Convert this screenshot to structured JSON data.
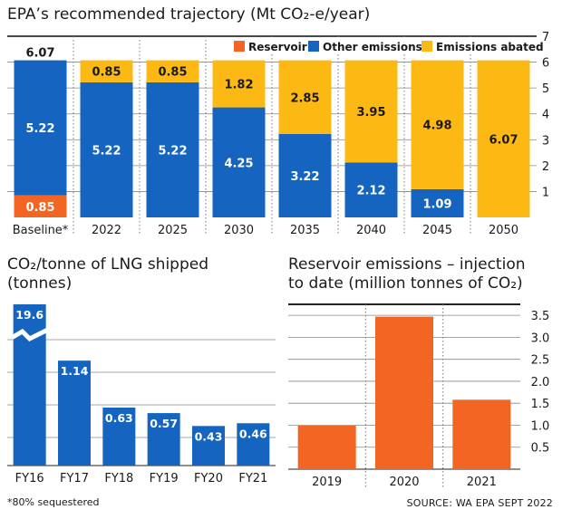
{
  "colors": {
    "reservoir": "#f26522",
    "other": "#1565c0",
    "abated": "#fdb913",
    "grid": "#666666",
    "text": "#1a1a1a"
  },
  "chart_data": [
    {
      "type": "bar",
      "title": "EPA’s recommended trajectory (Mt CO₂-e/year)",
      "categories": [
        "Baseline*",
        "2022",
        "2025",
        "2030",
        "2035",
        "2040",
        "2045",
        "2050"
      ],
      "series": [
        {
          "name": "Reservoir",
          "values": [
            0.85,
            0,
            0,
            0,
            0,
            0,
            0,
            0
          ]
        },
        {
          "name": "Other emissions",
          "values": [
            5.22,
            5.22,
            5.22,
            4.25,
            3.22,
            2.12,
            1.09,
            0
          ]
        },
        {
          "name": "Emissions abated",
          "values": [
            0,
            0.85,
            0.85,
            1.82,
            2.85,
            3.95,
            4.98,
            6.07
          ]
        }
      ],
      "totals": [
        6.07,
        null,
        null,
        null,
        null,
        null,
        null,
        null
      ],
      "ylim": [
        0,
        7
      ],
      "yticks": [
        1,
        2,
        3,
        4,
        5,
        6,
        7
      ],
      "stacked": true,
      "legend_position": "top-right"
    },
    {
      "type": "bar",
      "title": "CO₂/tonne of LNG shipped (tonnes)",
      "categories": [
        "FY16",
        "FY17",
        "FY18",
        "FY19",
        "FY20",
        "FY21"
      ],
      "values": [
        19.6,
        1.14,
        0.63,
        0.57,
        0.43,
        0.46
      ],
      "broken_axis": true
    },
    {
      "type": "bar",
      "title": "Reservoir emissions – injection to date (million tonnes of CO₂)",
      "categories": [
        "2019",
        "2020",
        "2021"
      ],
      "values": [
        0.99,
        3.47,
        1.58
      ],
      "ylim": [
        0,
        3.75
      ],
      "yticks": [
        0.5,
        1.0,
        1.5,
        2.0,
        2.5,
        3.0,
        3.5
      ]
    }
  ],
  "footnote": "*80% sequestered",
  "source": "SOURCE: WA EPA SEPT 2022"
}
